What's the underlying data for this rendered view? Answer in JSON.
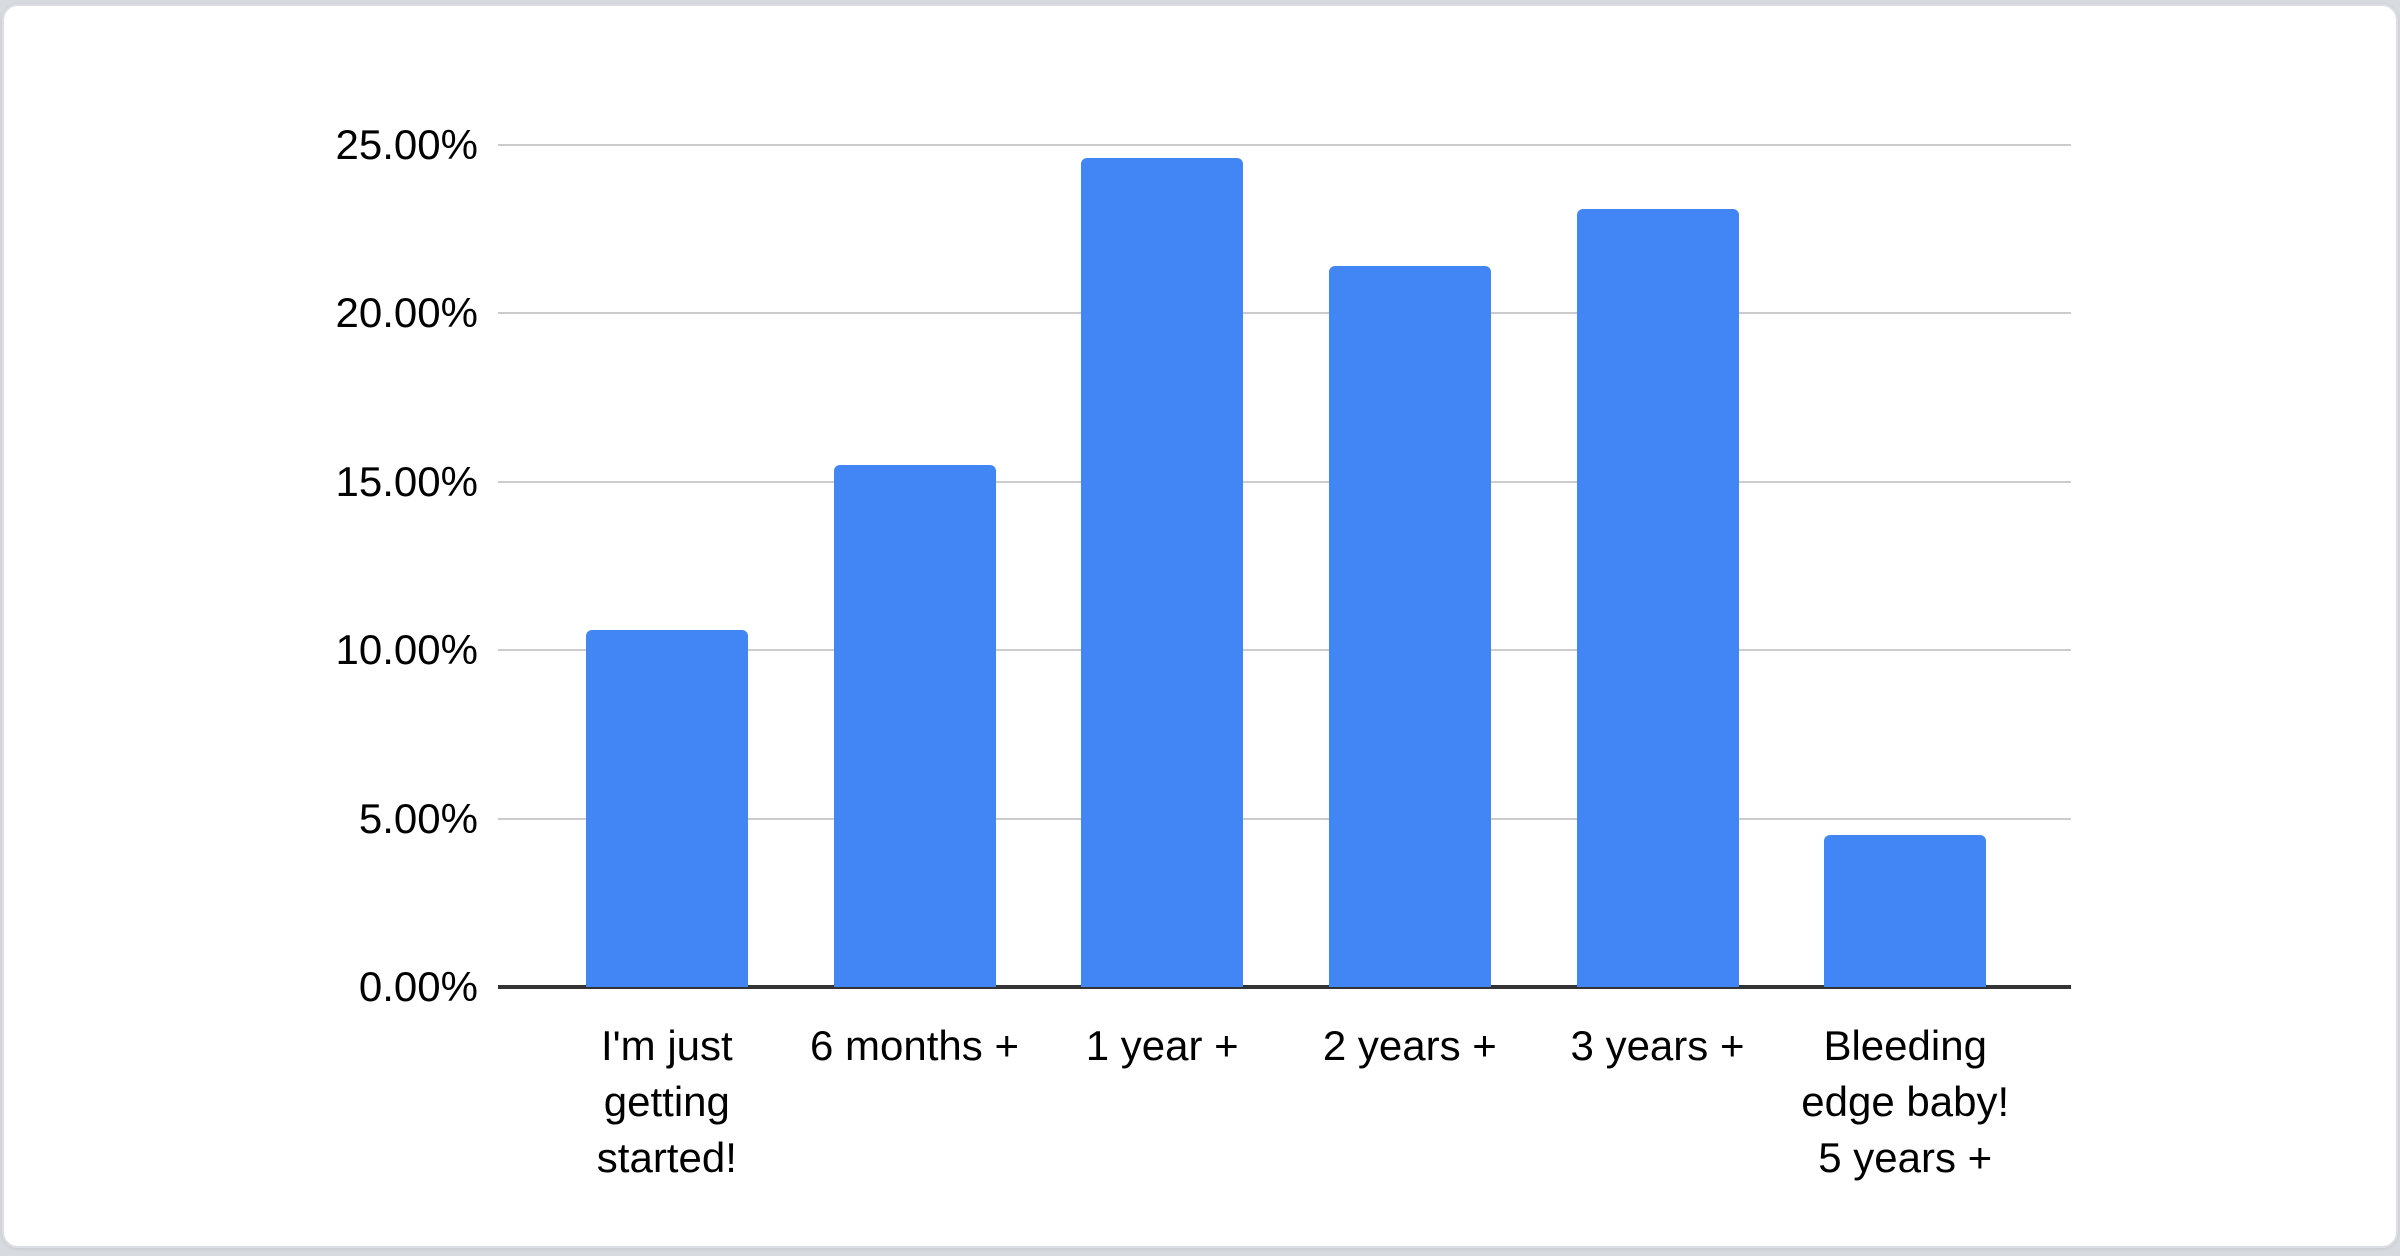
{
  "page": {
    "background_color": "#d7dade",
    "card_color": "#ffffff",
    "card_border_color": "#dcdfe3"
  },
  "chart_data": {
    "type": "bar",
    "title": "",
    "xlabel": "",
    "ylabel": "",
    "categories": [
      "I'm just getting started!",
      "6 months +",
      "1 year +",
      "2 years +",
      "3 years +",
      "Bleeding edge baby! 5 years +"
    ],
    "category_label_lines": [
      [
        "I'm just",
        "getting",
        "started!"
      ],
      [
        "6 months +"
      ],
      [
        "1 year +"
      ],
      [
        "2 years +"
      ],
      [
        "3 years +"
      ],
      [
        "Bleeding",
        "edge baby!",
        "5 years +"
      ]
    ],
    "values": [
      10.6,
      15.5,
      24.6,
      21.4,
      23.1,
      4.5
    ],
    "unit": "%",
    "ylim": [
      0,
      25
    ],
    "yticks": [
      {
        "value": 25,
        "label": "25.00%"
      },
      {
        "value": 20,
        "label": "20.00%"
      },
      {
        "value": 15,
        "label": "15.00%"
      },
      {
        "value": 10,
        "label": "10.00%"
      },
      {
        "value": 5,
        "label": "5.00%"
      },
      {
        "value": 0,
        "label": "0.00%"
      }
    ],
    "bar_color": "#4285f4",
    "gridline_color": "#cccccc",
    "baseline_color": "#333333",
    "grid": true,
    "legend": "none"
  }
}
